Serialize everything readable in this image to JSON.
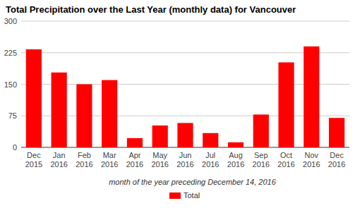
{
  "chart_data": {
    "type": "bar",
    "title": "Total Precipitation over the Last Year (monthly data) for Vancouver",
    "x_label": "month of the year preceding December 14, 2016",
    "categories": [
      "Dec 2015",
      "Jan 2016",
      "Feb 2016",
      "Mar 2016",
      "Apr 2016",
      "May 2016",
      "Jun 2016",
      "Jul 2016",
      "Aug 2016",
      "Sep 2016",
      "Oct 2016",
      "Nov 2016",
      "Dec 2016"
    ],
    "series": [
      {
        "name": "Total",
        "color": "#ff0000",
        "values": [
          233,
          178,
          150,
          160,
          22,
          52,
          58,
          34,
          12,
          78,
          202,
          240,
          70
        ]
      }
    ],
    "ylim": [
      0,
      300
    ],
    "yticks": [
      0,
      75,
      150,
      225,
      300
    ],
    "grid": true,
    "legend": "bottom"
  }
}
